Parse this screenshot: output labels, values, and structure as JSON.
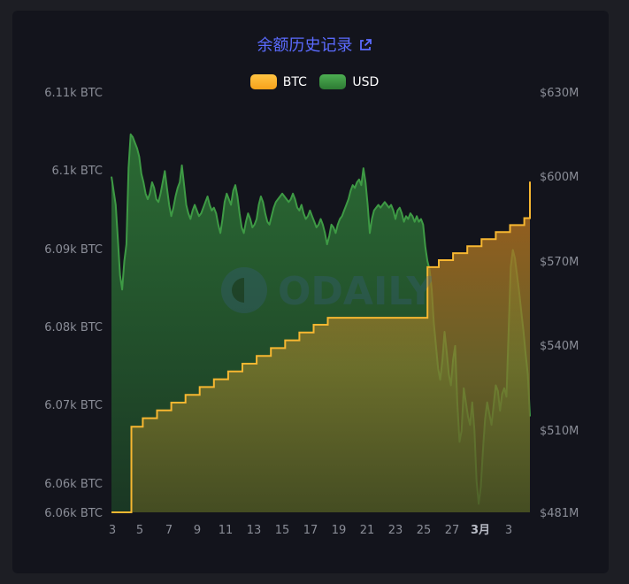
{
  "title": "余额历史记录",
  "icons": {
    "title_link": "external-link-icon",
    "watermark": "odaily-logo"
  },
  "watermark_text": "ODAILY",
  "colors": {
    "btc": "#f7b731",
    "usd": "#3e9a45",
    "title": "#5b6bff"
  },
  "legend": [
    {
      "label": "BTC",
      "color": "#f7b731"
    },
    {
      "label": "USD",
      "color": "#3e9a45"
    }
  ],
  "chart_data": {
    "type": "area",
    "title": "余额历史记录",
    "legend_position": "top-center",
    "grid": false,
    "x_tick_labels": [
      "3",
      "5",
      "7",
      "9",
      "11",
      "13",
      "15",
      "17",
      "19",
      "21",
      "23",
      "25",
      "27",
      "3月",
      "3"
    ],
    "x_range": [
      3.0,
      32.4
    ],
    "y_left": {
      "tick_labels": [
        "6.11k BTC",
        "6.1k BTC",
        "6.09k BTC",
        "6.08k BTC",
        "6.07k BTC",
        "6.06k BTC",
        "6.06k BTC"
      ],
      "range": [
        6058.0,
        6112.0
      ],
      "unit": "BTC"
    },
    "y_right": {
      "tick_labels": [
        "$630M",
        "$600M",
        "$570M",
        "$540M",
        "$510M",
        "$481M"
      ],
      "range": [
        481,
        630
      ],
      "unit": "$M"
    },
    "series": [
      {
        "name": "BTC",
        "axis": "left",
        "step": true,
        "points": [
          [
            3.0,
            6058.0
          ],
          [
            4.4,
            6058.0
          ],
          [
            4.4,
            6069.0
          ],
          [
            5.2,
            6069.0
          ],
          [
            5.2,
            6070.1
          ],
          [
            6.2,
            6070.1
          ],
          [
            6.2,
            6071.1
          ],
          [
            7.2,
            6071.1
          ],
          [
            7.2,
            6072.1
          ],
          [
            8.2,
            6072.1
          ],
          [
            8.2,
            6073.1
          ],
          [
            9.2,
            6073.1
          ],
          [
            9.2,
            6074.1
          ],
          [
            10.2,
            6074.1
          ],
          [
            10.2,
            6075.1
          ],
          [
            11.2,
            6075.1
          ],
          [
            11.2,
            6076.1
          ],
          [
            12.2,
            6076.1
          ],
          [
            12.2,
            6077.1
          ],
          [
            13.2,
            6077.1
          ],
          [
            13.2,
            6078.1
          ],
          [
            14.2,
            6078.1
          ],
          [
            14.2,
            6079.1
          ],
          [
            15.2,
            6079.1
          ],
          [
            15.2,
            6080.1
          ],
          [
            16.2,
            6080.1
          ],
          [
            16.2,
            6081.1
          ],
          [
            17.2,
            6081.1
          ],
          [
            17.2,
            6082.1
          ],
          [
            18.2,
            6082.1
          ],
          [
            18.2,
            6083.0
          ],
          [
            25.2,
            6083.0
          ],
          [
            25.2,
            6089.5
          ],
          [
            26.0,
            6089.5
          ],
          [
            26.0,
            6090.4
          ],
          [
            27.0,
            6090.4
          ],
          [
            27.0,
            6091.3
          ],
          [
            28.0,
            6091.3
          ],
          [
            28.0,
            6092.2
          ],
          [
            29.0,
            6092.2
          ],
          [
            29.0,
            6093.1
          ],
          [
            30.0,
            6093.1
          ],
          [
            30.0,
            6094.0
          ],
          [
            31.0,
            6094.0
          ],
          [
            31.0,
            6094.9
          ],
          [
            32.0,
            6094.9
          ],
          [
            32.0,
            6095.8
          ],
          [
            32.4,
            6095.8
          ],
          [
            32.4,
            6100.5
          ]
        ]
      },
      {
        "name": "USD",
        "axis": "right",
        "points": [
          [
            3.0,
            600
          ],
          [
            3.15,
            595
          ],
          [
            3.3,
            590
          ],
          [
            3.45,
            578
          ],
          [
            3.6,
            565
          ],
          [
            3.75,
            560
          ],
          [
            3.9,
            570
          ],
          [
            4.05,
            576
          ],
          [
            4.2,
            603
          ],
          [
            4.35,
            615
          ],
          [
            4.5,
            614
          ],
          [
            4.65,
            612
          ],
          [
            4.8,
            610
          ],
          [
            4.95,
            607
          ],
          [
            5.1,
            601
          ],
          [
            5.25,
            598
          ],
          [
            5.4,
            594
          ],
          [
            5.55,
            592
          ],
          [
            5.7,
            594
          ],
          [
            5.85,
            598
          ],
          [
            6.0,
            596
          ],
          [
            6.15,
            592
          ],
          [
            6.3,
            591
          ],
          [
            6.45,
            594
          ],
          [
            6.6,
            598
          ],
          [
            6.75,
            602
          ],
          [
            6.9,
            596
          ],
          [
            7.05,
            590
          ],
          [
            7.2,
            586
          ],
          [
            7.35,
            589
          ],
          [
            7.5,
            593
          ],
          [
            7.65,
            596
          ],
          [
            7.8,
            598
          ],
          [
            7.95,
            604
          ],
          [
            8.1,
            597
          ],
          [
            8.25,
            590
          ],
          [
            8.4,
            587
          ],
          [
            8.55,
            585
          ],
          [
            8.7,
            588
          ],
          [
            8.85,
            590
          ],
          [
            9.0,
            588
          ],
          [
            9.15,
            586
          ],
          [
            9.3,
            587
          ],
          [
            9.45,
            589
          ],
          [
            9.6,
            591
          ],
          [
            9.75,
            593
          ],
          [
            9.9,
            590
          ],
          [
            10.05,
            588
          ],
          [
            10.2,
            589
          ],
          [
            10.35,
            587
          ],
          [
            10.5,
            583
          ],
          [
            10.65,
            580
          ],
          [
            10.8,
            585
          ],
          [
            10.95,
            591
          ],
          [
            11.1,
            594
          ],
          [
            11.25,
            592
          ],
          [
            11.4,
            590
          ],
          [
            11.55,
            595
          ],
          [
            11.7,
            597
          ],
          [
            11.85,
            593
          ],
          [
            12.0,
            587
          ],
          [
            12.15,
            582
          ],
          [
            12.3,
            580
          ],
          [
            12.45,
            584
          ],
          [
            12.6,
            587
          ],
          [
            12.75,
            585
          ],
          [
            12.9,
            582
          ],
          [
            13.05,
            583
          ],
          [
            13.2,
            585
          ],
          [
            13.35,
            590
          ],
          [
            13.5,
            593
          ],
          [
            13.65,
            591
          ],
          [
            13.8,
            587
          ],
          [
            13.95,
            584
          ],
          [
            14.1,
            583
          ],
          [
            14.25,
            586
          ],
          [
            14.4,
            589
          ],
          [
            14.55,
            591
          ],
          [
            14.7,
            592
          ],
          [
            14.85,
            593
          ],
          [
            15.0,
            594
          ],
          [
            15.15,
            593
          ],
          [
            15.3,
            592
          ],
          [
            15.45,
            591
          ],
          [
            15.6,
            592
          ],
          [
            15.75,
            594
          ],
          [
            15.9,
            592
          ],
          [
            16.05,
            589
          ],
          [
            16.2,
            588
          ],
          [
            16.35,
            590
          ],
          [
            16.5,
            587
          ],
          [
            16.65,
            585
          ],
          [
            16.8,
            586
          ],
          [
            16.95,
            588
          ],
          [
            17.1,
            586
          ],
          [
            17.25,
            584
          ],
          [
            17.4,
            582
          ],
          [
            17.55,
            583
          ],
          [
            17.7,
            585
          ],
          [
            17.85,
            583
          ],
          [
            18.0,
            580
          ],
          [
            18.15,
            576
          ],
          [
            18.3,
            579
          ],
          [
            18.45,
            583
          ],
          [
            18.6,
            582
          ],
          [
            18.75,
            580
          ],
          [
            18.9,
            583
          ],
          [
            19.05,
            585
          ],
          [
            19.2,
            586
          ],
          [
            19.35,
            588
          ],
          [
            19.5,
            590
          ],
          [
            19.65,
            592
          ],
          [
            19.8,
            595
          ],
          [
            19.95,
            597
          ],
          [
            20.1,
            596
          ],
          [
            20.25,
            598
          ],
          [
            20.4,
            599
          ],
          [
            20.55,
            597
          ],
          [
            20.7,
            603
          ],
          [
            20.85,
            598
          ],
          [
            21.0,
            590
          ],
          [
            21.15,
            580
          ],
          [
            21.3,
            585
          ],
          [
            21.45,
            588
          ],
          [
            21.6,
            589
          ],
          [
            21.75,
            590
          ],
          [
            21.9,
            589
          ],
          [
            22.05,
            590
          ],
          [
            22.2,
            591
          ],
          [
            22.35,
            590
          ],
          [
            22.5,
            589
          ],
          [
            22.65,
            590
          ],
          [
            22.8,
            588
          ],
          [
            22.95,
            585
          ],
          [
            23.1,
            588
          ],
          [
            23.25,
            589
          ],
          [
            23.4,
            587
          ],
          [
            23.55,
            584
          ],
          [
            23.7,
            586
          ],
          [
            23.85,
            585
          ],
          [
            24.0,
            587
          ],
          [
            24.15,
            586
          ],
          [
            24.3,
            584
          ],
          [
            24.45,
            586
          ],
          [
            24.6,
            584
          ],
          [
            24.75,
            585
          ],
          [
            24.9,
            583
          ],
          [
            25.05,
            575
          ],
          [
            25.2,
            570
          ],
          [
            25.35,
            567
          ],
          [
            25.5,
            560
          ],
          [
            25.65,
            548
          ],
          [
            25.8,
            540
          ],
          [
            25.95,
            532
          ],
          [
            26.1,
            528
          ],
          [
            26.25,
            535
          ],
          [
            26.4,
            545
          ],
          [
            26.55,
            538
          ],
          [
            26.7,
            530
          ],
          [
            26.85,
            526
          ],
          [
            27.0,
            535
          ],
          [
            27.15,
            540
          ],
          [
            27.3,
            520
          ],
          [
            27.45,
            506
          ],
          [
            27.6,
            510
          ],
          [
            27.75,
            525
          ],
          [
            27.9,
            520
          ],
          [
            28.05,
            515
          ],
          [
            28.2,
            512
          ],
          [
            28.35,
            520
          ],
          [
            28.5,
            510
          ],
          [
            28.65,
            492
          ],
          [
            28.8,
            484
          ],
          [
            28.95,
            490
          ],
          [
            29.1,
            503
          ],
          [
            29.25,
            514
          ],
          [
            29.4,
            520
          ],
          [
            29.55,
            516
          ],
          [
            29.7,
            512
          ],
          [
            29.85,
            519
          ],
          [
            30.0,
            526
          ],
          [
            30.15,
            524
          ],
          [
            30.3,
            517
          ],
          [
            30.45,
            523
          ],
          [
            30.6,
            525
          ],
          [
            30.75,
            522
          ],
          [
            30.9,
            545
          ],
          [
            31.05,
            568
          ],
          [
            31.2,
            574
          ],
          [
            31.35,
            571
          ],
          [
            31.5,
            565
          ],
          [
            31.65,
            559
          ],
          [
            31.8,
            552
          ],
          [
            31.95,
            545
          ],
          [
            32.1,
            537
          ],
          [
            32.25,
            530
          ],
          [
            32.4,
            515
          ]
        ]
      }
    ]
  }
}
